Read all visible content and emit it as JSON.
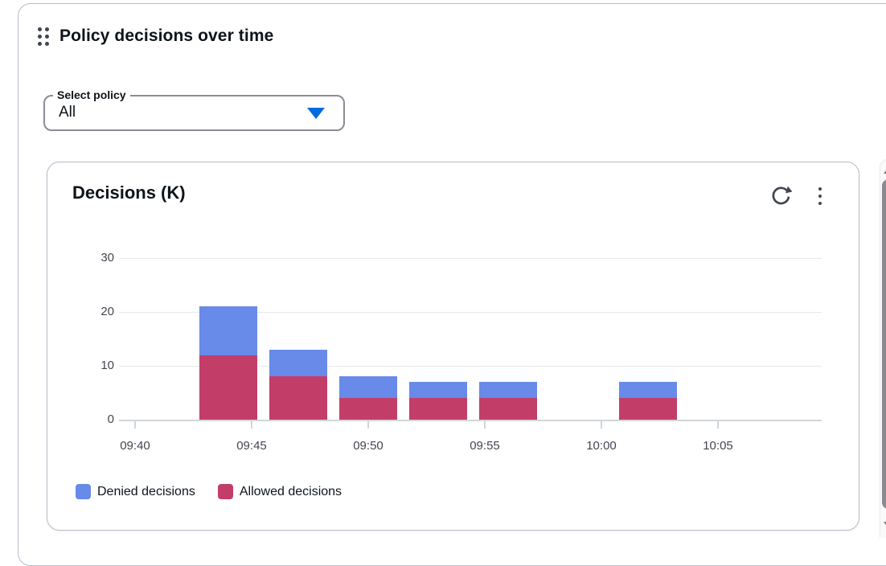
{
  "widget": {
    "title": "Policy decisions over time",
    "drag_handle_icon": "drag-dots-grid",
    "policy_select": {
      "label": "Select policy",
      "value": "All",
      "caret_icon": "triangle-down",
      "caret_color": "#006ce0"
    }
  },
  "card": {
    "title": "Decisions (K)",
    "refresh_icon": "refresh-circular-arrow",
    "menu_icon": "kebab-vertical-dots",
    "icon_color": "#424650"
  },
  "chart_data": {
    "type": "bar",
    "stacked": true,
    "title": "Decisions (K)",
    "ylabel": "Decisions (K)",
    "xlabel": "",
    "grid": true,
    "legend_position": "bottom",
    "x_axis": {
      "tick_labels": [
        "09:40",
        "09:45",
        "09:50",
        "09:55",
        "10:00",
        "10:05"
      ],
      "tick_minutes": [
        0,
        5,
        10,
        15,
        20,
        25
      ]
    },
    "y_axis": {
      "ticks": [
        0,
        10,
        20,
        30
      ],
      "lim": [
        0,
        30
      ]
    },
    "bar_centers_minutes": [
      4,
      7,
      10,
      13,
      16,
      22
    ],
    "bar_center_times": [
      "09:44",
      "09:47",
      "09:50",
      "09:53",
      "09:56",
      "10:02"
    ],
    "bar_width_minutes": 2.5,
    "stack_bottom_series": "Allowed decisions",
    "series": [
      {
        "name": "Denied decisions",
        "color": "#688ae8",
        "values": [
          9,
          5,
          4,
          3,
          3,
          3
        ]
      },
      {
        "name": "Allowed decisions",
        "color": "#c33d69",
        "values": [
          12,
          8,
          4,
          4,
          4,
          4
        ]
      }
    ],
    "totals": [
      21,
      13,
      8,
      7,
      7,
      7
    ]
  },
  "scrollbar": {
    "up_icon": "scroll-up-arrow",
    "down_icon": "scroll-down-arrow",
    "thumb_color": "#8b8b8f"
  },
  "colors": {
    "denied": "#688ae8",
    "allowed": "#c33d69",
    "accent_blue": "#006ce0",
    "text": "#0f141a",
    "icon": "#424650",
    "border": "#b7bdc7",
    "gridline": "#e7e9ec",
    "axis_line": "#d2d6db"
  }
}
